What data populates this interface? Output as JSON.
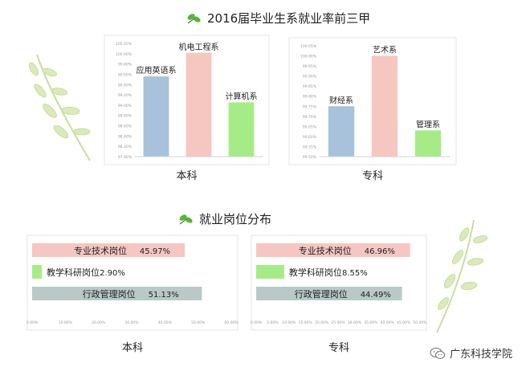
{
  "titles": {
    "top": "2016届毕业生系就业率前三甲",
    "bottom": "就业岗位分布"
  },
  "watermark": "广东科技学院",
  "colors": {
    "blue": "#a7c2da",
    "pink": "#f6c6c0",
    "green": "#a6ec86",
    "gray": "#b8c9c8",
    "leaf": "#55b43a"
  },
  "chart_data": [
    {
      "type": "bar",
      "xlabel": "本科",
      "categories": [
        "应用英语系",
        "机电工程系",
        "计算机系"
      ],
      "values": [
        99.5,
        100.0,
        98.95
      ],
      "colors": [
        "#a7c2da",
        "#f6c6c0",
        "#a6ec86"
      ],
      "ylim": [
        97.8,
        100.2
      ],
      "yticks": [
        "97.80%",
        "98.20%",
        "98.40%",
        "98.60%",
        "98.80%",
        "99.00%",
        "99.20%",
        "99.40%",
        "99.60%",
        "99.80%",
        "100.00%",
        "100.20%"
      ]
    },
    {
      "type": "bar",
      "xlabel": "专科",
      "categories": [
        "财经系",
        "艺术系",
        "管理系"
      ],
      "values": [
        99.75,
        100.0,
        99.63
      ],
      "colors": [
        "#a7c2da",
        "#f6c6c0",
        "#a6ec86"
      ],
      "ylim": [
        99.5,
        100.05
      ],
      "yticks": [
        "99.50%",
        "99.55%",
        "99.60%",
        "99.65%",
        "99.70%",
        "99.75%",
        "99.80%",
        "99.85%",
        "99.90%",
        "99.95%",
        "100.00%",
        "100.05%"
      ]
    },
    {
      "type": "bar",
      "orientation": "horizontal",
      "xlabel": "本科",
      "categories": [
        "专业技术岗位",
        "教学科研岗位",
        "行政管理岗位"
      ],
      "values": [
        45.97,
        2.9,
        51.13
      ],
      "value_labels": [
        "45.97%",
        "2.90%",
        "51.13%"
      ],
      "colors": [
        "#f6c6c0",
        "#a6ec86",
        "#b8c9c8"
      ],
      "xlim": [
        0,
        60
      ],
      "xticks": [
        "0.00%",
        "10.00%",
        "20.00%",
        "30.00%",
        "40.00%",
        "50.00%",
        "60.00%"
      ]
    },
    {
      "type": "bar",
      "orientation": "horizontal",
      "xlabel": "专科",
      "categories": [
        "专业技术岗位",
        "教学科研岗位",
        "行政管理岗位"
      ],
      "values": [
        46.96,
        8.55,
        44.49
      ],
      "value_labels": [
        "46.96%",
        "8.55%",
        "44.49%"
      ],
      "colors": [
        "#f6c6c0",
        "#a6ec86",
        "#b8c9c8"
      ],
      "xlim": [
        0,
        50
      ],
      "xticks": [
        "0.00%",
        "5.00%",
        "10.00%",
        "15.00%",
        "20.00%",
        "25.00%",
        "30.00%",
        "35.00%",
        "40.00%",
        "45.00%",
        "50.00%"
      ]
    }
  ]
}
